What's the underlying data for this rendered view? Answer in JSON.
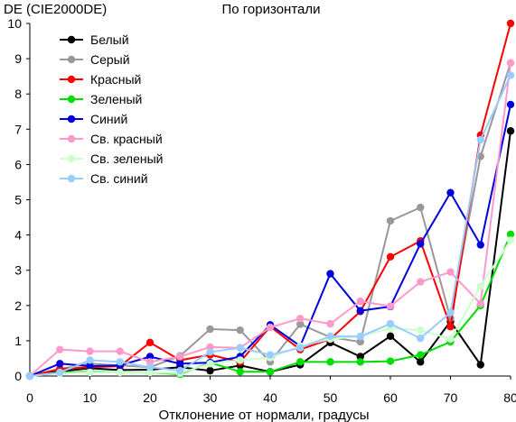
{
  "chart_data": {
    "type": "line",
    "title": "По горизонтали",
    "ylabel": "DE (CIE2000DE)",
    "xlabel": "Отклонение от нормали, градусы",
    "x": [
      0,
      5,
      10,
      15,
      20,
      25,
      30,
      35,
      40,
      45,
      50,
      55,
      60,
      65,
      70,
      75,
      80
    ],
    "xticks": [
      0,
      10,
      20,
      30,
      40,
      50,
      60,
      70,
      80
    ],
    "yticks": [
      0,
      1,
      2,
      3,
      4,
      5,
      6,
      7,
      8,
      9,
      10
    ],
    "xlim": [
      0,
      80
    ],
    "ylim": [
      0,
      10
    ],
    "grid": false,
    "legend_position": "top-left",
    "series": [
      {
        "name": "Белый",
        "color": "#000000",
        "values": [
          0.0,
          0.13,
          0.22,
          0.17,
          0.18,
          0.25,
          0.15,
          0.3,
          0.12,
          0.32,
          0.95,
          0.55,
          1.13,
          0.4,
          1.55,
          0.32,
          6.95
        ]
      },
      {
        "name": "Серый",
        "color": "#999999",
        "values": [
          0.0,
          0.2,
          0.35,
          0.3,
          0.25,
          0.57,
          1.33,
          1.3,
          0.4,
          1.47,
          1.1,
          0.97,
          4.4,
          4.78,
          1.63,
          6.23,
          8.88
        ]
      },
      {
        "name": "Красный",
        "color": "#ff0000",
        "values": [
          0.0,
          0.2,
          0.25,
          0.28,
          0.95,
          0.45,
          0.6,
          0.4,
          1.4,
          0.75,
          1.05,
          1.83,
          3.38,
          3.83,
          1.4,
          6.83,
          10.0
        ]
      },
      {
        "name": "Зеленый",
        "color": "#00dd00",
        "values": [
          0.0,
          0.1,
          0.12,
          0.1,
          0.1,
          0.05,
          0.38,
          0.12,
          0.12,
          0.4,
          0.4,
          0.4,
          0.42,
          0.6,
          0.97,
          2.0,
          4.02
        ]
      },
      {
        "name": "Синий",
        "color": "#0000dd",
        "values": [
          0.0,
          0.35,
          0.28,
          0.3,
          0.55,
          0.35,
          0.38,
          0.55,
          1.45,
          0.85,
          2.9,
          1.85,
          1.97,
          3.75,
          5.2,
          3.72,
          7.7
        ]
      },
      {
        "name": "Св. красный",
        "color": "#ff99cc",
        "values": [
          0.0,
          0.75,
          0.7,
          0.7,
          0.4,
          0.55,
          0.82,
          0.8,
          1.38,
          1.63,
          1.48,
          2.12,
          1.98,
          2.67,
          2.95,
          2.05,
          8.88
        ]
      },
      {
        "name": "Св. зеленый",
        "color": "#ccffcc",
        "values": [
          0.0,
          0.08,
          0.1,
          0.1,
          0.1,
          0.08,
          0.35,
          0.45,
          0.52,
          0.85,
          1.05,
          1.13,
          1.35,
          1.3,
          1.05,
          2.55,
          3.85
        ]
      },
      {
        "name": "Св. синий",
        "color": "#99ccff",
        "values": [
          0.0,
          0.1,
          0.45,
          0.4,
          0.25,
          0.15,
          0.68,
          0.8,
          0.6,
          0.8,
          1.13,
          1.12,
          1.48,
          1.07,
          1.8,
          6.7,
          8.53
        ]
      }
    ]
  }
}
